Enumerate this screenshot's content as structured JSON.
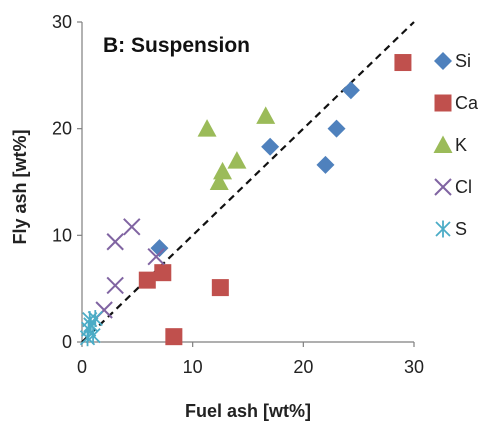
{
  "chart_data": {
    "type": "scatter",
    "title": "B: Suspension",
    "xlabel": "Fuel ash  [wt%]",
    "ylabel": "Fly ash  [wt%]",
    "xlim": [
      0,
      30
    ],
    "ylim": [
      0,
      30
    ],
    "xticks": [
      "0",
      "10",
      "20",
      "30"
    ],
    "yticks": [
      "0",
      "10",
      "20",
      "30"
    ],
    "grid": false,
    "legend_position": "right",
    "reference_line": {
      "style": "dashed",
      "x": [
        0,
        30
      ],
      "y": [
        0,
        30
      ]
    },
    "series": [
      {
        "name": "Si",
        "marker": "diamond",
        "color": "#4F81BD",
        "x": [
          7.0,
          17.0,
          22.0,
          23.0,
          24.3
        ],
        "y": [
          8.8,
          18.3,
          16.6,
          20.0,
          23.6
        ]
      },
      {
        "name": "Ca",
        "marker": "square",
        "color": "#C0504D",
        "x": [
          5.9,
          7.3,
          8.3,
          12.5,
          29.0
        ],
        "y": [
          5.8,
          6.5,
          0.5,
          5.1,
          26.2
        ]
      },
      {
        "name": "K",
        "marker": "triangle",
        "color": "#9BBB59",
        "x": [
          11.3,
          12.4,
          12.7,
          14.0,
          16.6
        ],
        "y": [
          20.0,
          15.0,
          16.0,
          17.0,
          21.2
        ]
      },
      {
        "name": "Cl",
        "marker": "x",
        "color": "#8064A2",
        "x": [
          2.0,
          3.0,
          3.0,
          4.5,
          6.7
        ],
        "y": [
          3.0,
          5.3,
          9.4,
          10.8,
          8.0
        ]
      },
      {
        "name": "S",
        "marker": "asterisk",
        "color": "#4BACC6",
        "x": [
          0.5,
          0.6,
          0.7,
          0.8,
          1.0,
          1.2
        ],
        "y": [
          0.4,
          1.2,
          2.1,
          1.6,
          0.6,
          2.2
        ]
      }
    ]
  }
}
